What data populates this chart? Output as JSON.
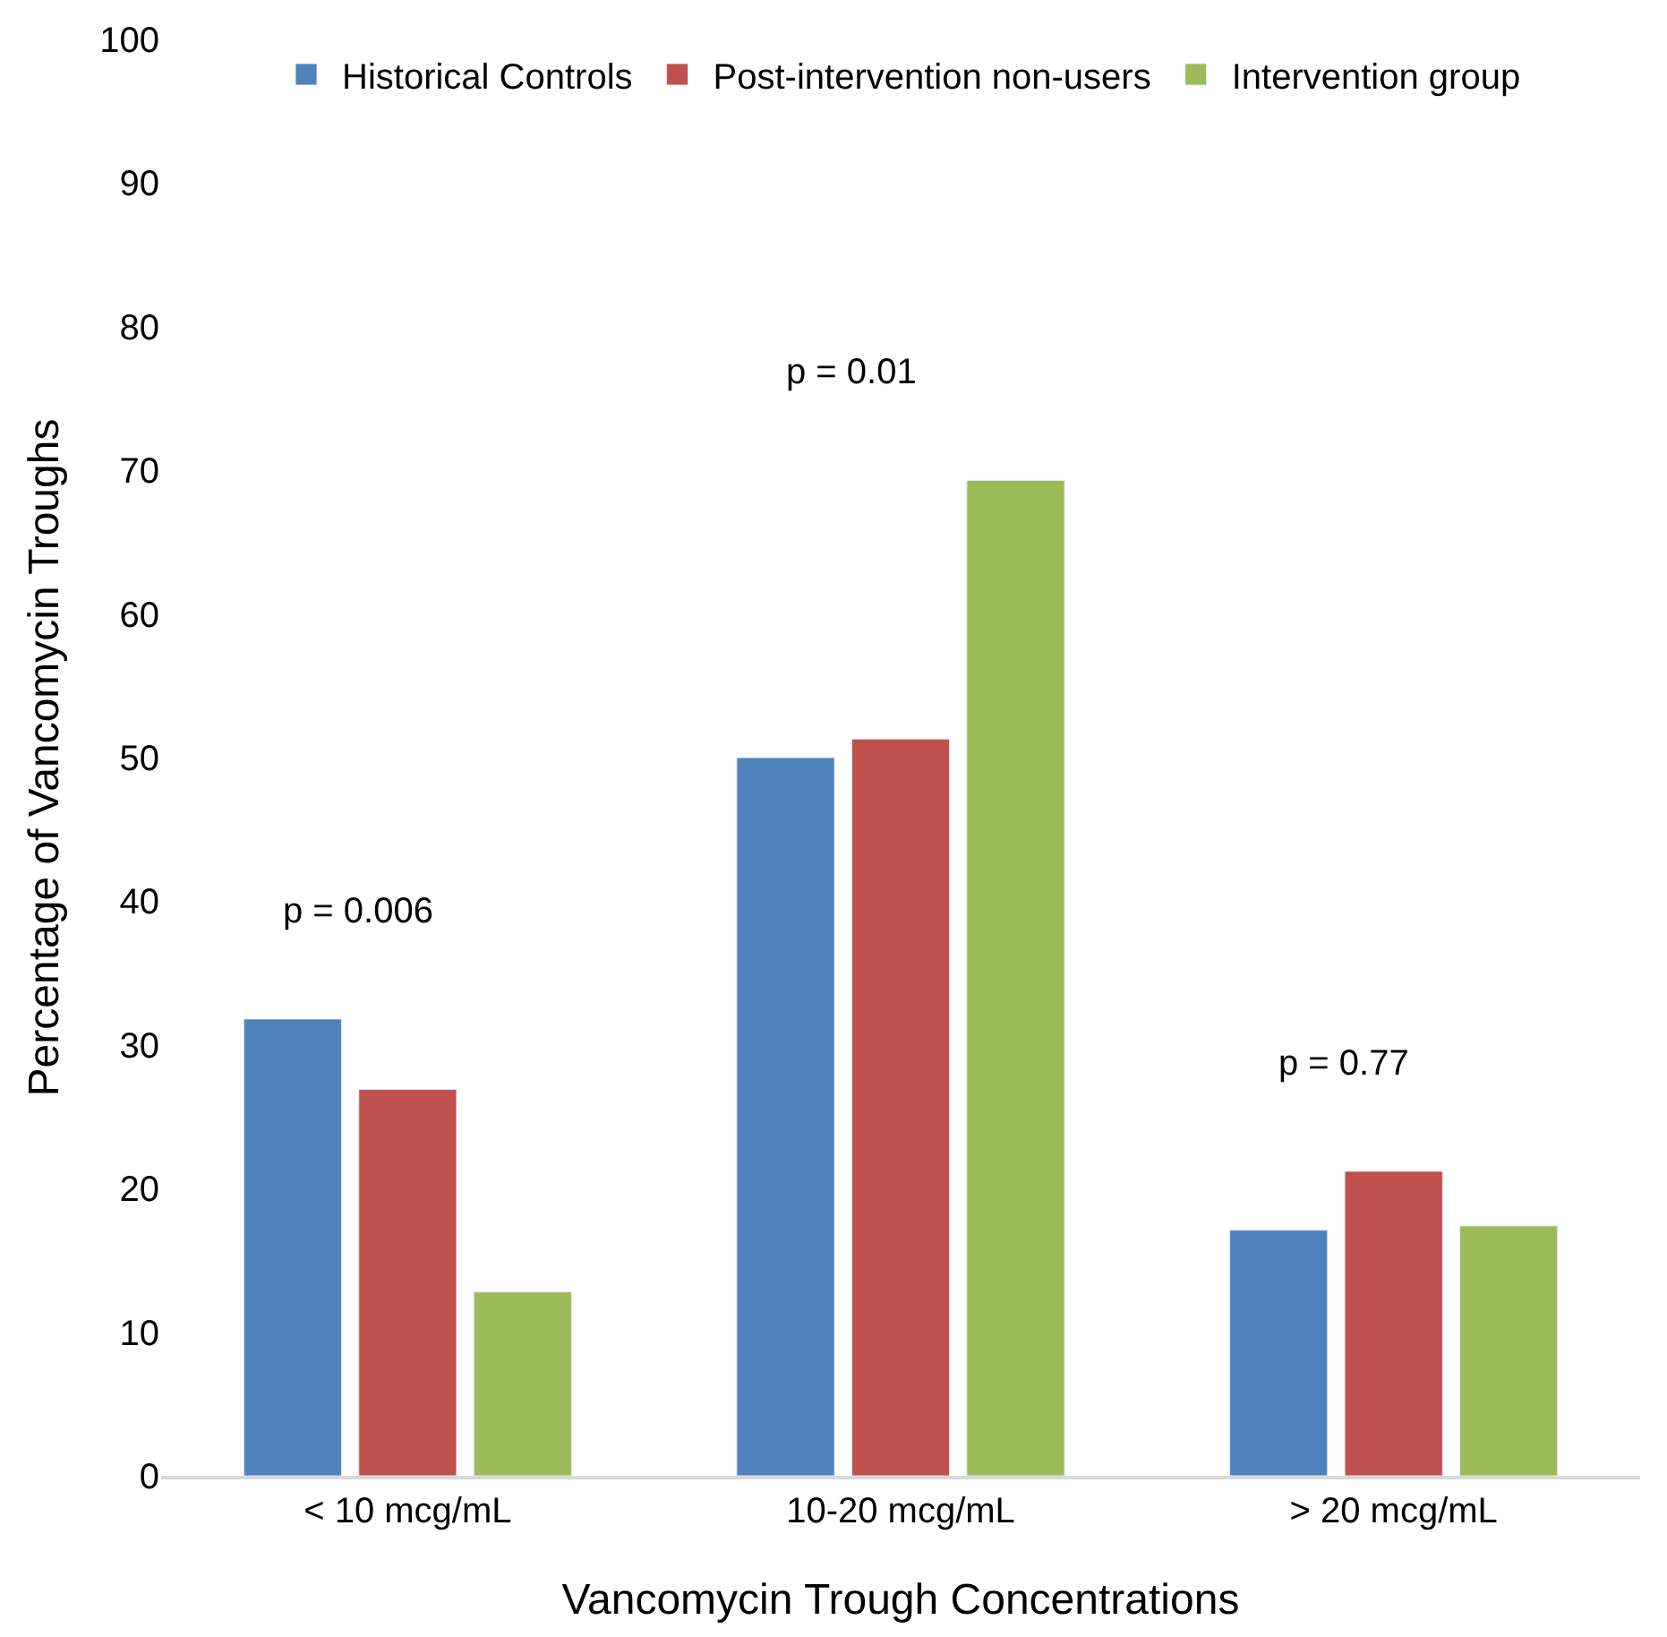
{
  "chart_data": {
    "type": "bar",
    "xlabel": "Vancomycin Trough Concentrations",
    "ylabel": "Percentage of Vancomycin Troughs",
    "categories": [
      "< 10 mcg/mL",
      "10-20 mcg/mL",
      "> 20 mcg/mL"
    ],
    "series": [
      {
        "name": "Historical Controls",
        "color": "#4f81bd",
        "values": [
          31.8,
          50.0,
          17.1
        ]
      },
      {
        "name": "Post-intervention non-users",
        "color": "#c0504d",
        "values": [
          26.9,
          51.3,
          21.2
        ]
      },
      {
        "name": "Intervention group",
        "color": "#9bbb59",
        "values": [
          12.8,
          69.3,
          17.4
        ]
      }
    ],
    "ylim": [
      0,
      100
    ],
    "yticks": [
      0,
      10,
      20,
      30,
      40,
      50,
      60,
      70,
      80,
      90,
      100
    ],
    "grid": false,
    "legend": "top",
    "annotations": [
      "p = 0.006",
      "p = 0.01",
      "p = 0.77"
    ]
  }
}
